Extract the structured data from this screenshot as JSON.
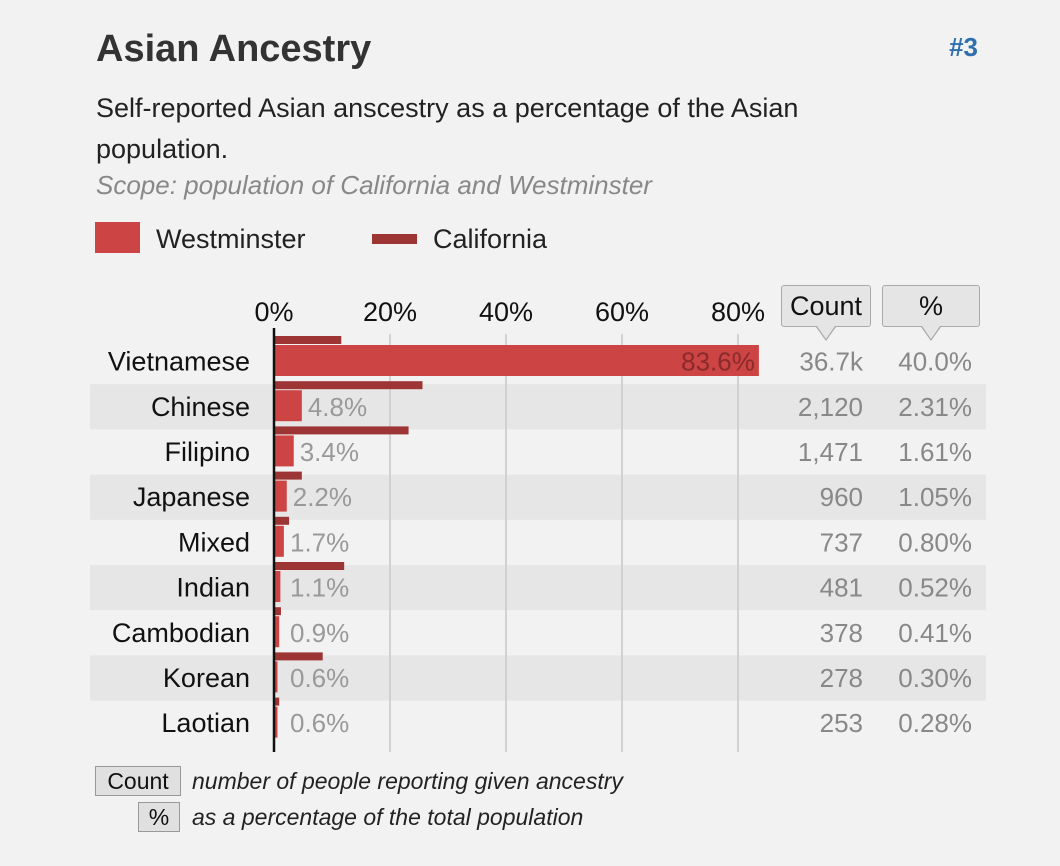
{
  "header": {
    "title": "Asian Ancestry",
    "rank": "#3",
    "description": "Self-reported Asian anscestry as a percentage of the Asian population.",
    "scope": "Scope: population of California and Westminster"
  },
  "legend": {
    "westminster": "Westminster",
    "california": "California"
  },
  "colors": {
    "westminster_bar": "#cc4444",
    "california_bar": "#9e3535",
    "stripe": "#e6e6e6",
    "grid": "#c8c8c8",
    "value_label": "#999999",
    "rank_link": "#2f6fae"
  },
  "columns": {
    "count_label": "Count",
    "pct_label": "%"
  },
  "chart_data": {
    "type": "bar",
    "orientation": "horizontal",
    "xlim": [
      0,
      100
    ],
    "x_ticks": [
      "0%",
      "20%",
      "40%",
      "60%",
      "80%"
    ],
    "categories": [
      "Vietnamese",
      "Chinese",
      "Filipino",
      "Japanese",
      "Mixed",
      "Indian",
      "Cambodian",
      "Korean",
      "Laotian"
    ],
    "series": [
      {
        "name": "Westminster",
        "values": [
          83.6,
          4.8,
          3.4,
          2.2,
          1.7,
          1.1,
          0.9,
          0.6,
          0.6
        ],
        "labels": [
          "83.6%",
          "4.8%",
          "3.4%",
          "2.2%",
          "1.7%",
          "1.1%",
          "0.9%",
          "0.6%",
          "0.6%"
        ]
      },
      {
        "name": "California",
        "values": [
          11.6,
          25.6,
          23.2,
          4.8,
          2.6,
          12.1,
          1.2,
          8.4,
          0.9
        ]
      }
    ],
    "count": [
      "36.7k",
      "2,120",
      "1,471",
      "960",
      "737",
      "481",
      "378",
      "278",
      "253"
    ],
    "percent_of_total": [
      "40.0%",
      "2.31%",
      "1.61%",
      "1.05%",
      "0.80%",
      "0.52%",
      "0.41%",
      "0.30%",
      "0.28%"
    ]
  },
  "footer": {
    "count_button": "Count",
    "count_text": "number of people reporting given ancestry",
    "pct_button": "%",
    "pct_text": "as a percentage of the total population"
  }
}
